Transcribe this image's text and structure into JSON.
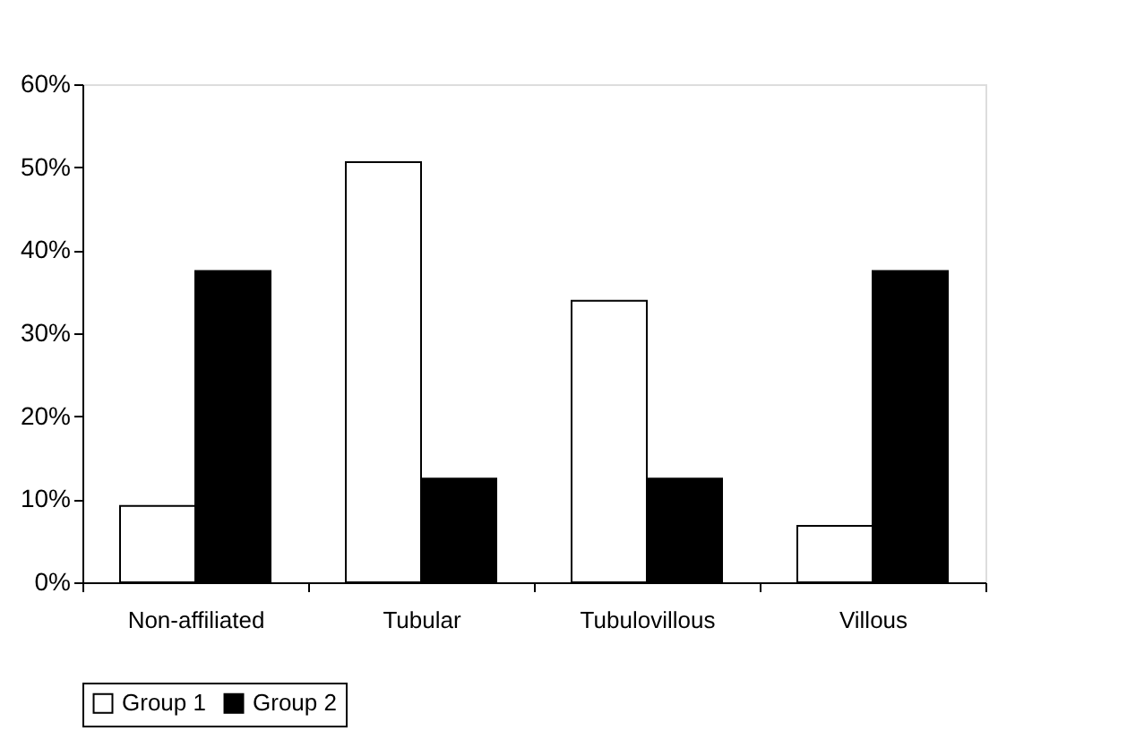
{
  "chart_data": {
    "type": "bar",
    "categories": [
      "Non-affiliated",
      "Tubular",
      "Tubulovillous",
      "Villous"
    ],
    "series": [
      {
        "name": "Group 1",
        "color": "#ffffff",
        "values": [
          9.2,
          50.6,
          33.9,
          6.8
        ]
      },
      {
        "name": "Group 2",
        "color": "#000000",
        "values": [
          37.5,
          12.5,
          12.5,
          37.5
        ]
      }
    ],
    "ylim": [
      0,
      60
    ],
    "yticks": [
      {
        "value": 0,
        "label": "0%"
      },
      {
        "value": 10,
        "label": "10%"
      },
      {
        "value": 20,
        "label": "20%"
      },
      {
        "value": 30,
        "label": "30%"
      },
      {
        "value": 40,
        "label": "40%"
      },
      {
        "value": 50,
        "label": "50%"
      },
      {
        "value": 60,
        "label": "60%"
      }
    ],
    "grid": false,
    "legend": "bottom"
  }
}
